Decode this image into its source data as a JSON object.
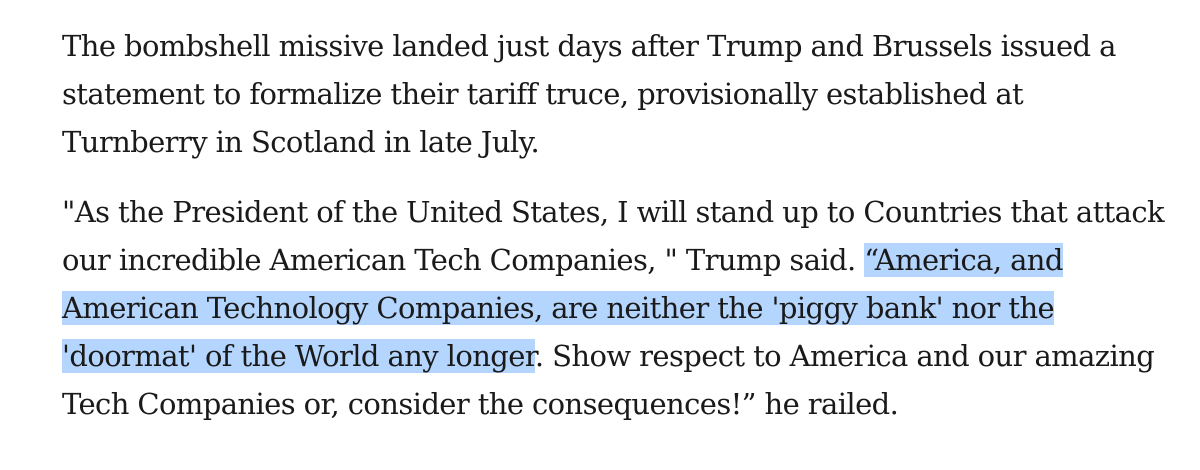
{
  "article": {
    "paragraph_1": {
      "lines": [
        "The bombshell missive landed just days after Trump and Brussels issued a",
        "statement to formalize their tariff truce, provisionally established at",
        "Turnberry in Scotland in late July."
      ]
    },
    "paragraph_2": {
      "line_1": "\"As the President of the United States, I will stand up to Countries that attack",
      "line_2_plain": "our incredible American Tech Companies, \" Trump said. ",
      "line_2_selected": "“America, and",
      "line_3_selected": "American Technology Companies, are neither the 'piggy bank' nor the",
      "line_4_selected": "'doormat' of the World any longer",
      "line_4_plain": ". Show respect to America and our amazing",
      "line_5": "Tech Companies or, consider the consequences!” he railed."
    },
    "selection_color": "#b4d5fe"
  }
}
